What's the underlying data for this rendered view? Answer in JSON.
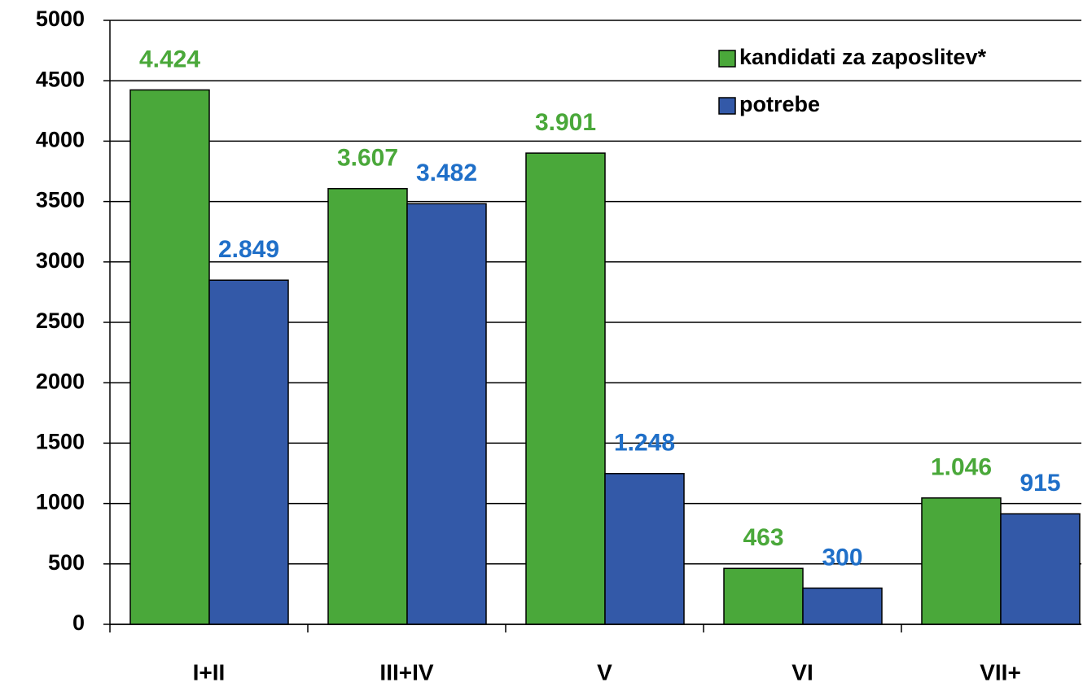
{
  "chart_data": {
    "type": "bar",
    "categories": [
      "I+II",
      "III+IV",
      "V",
      "VI",
      "VII+"
    ],
    "series": [
      {
        "name": "kandidati za zaposlitev*",
        "color": "#4aa83a",
        "label_color": "#4aa83a",
        "values": [
          4424,
          3607,
          3901,
          463,
          1046
        ],
        "value_labels": [
          "4.424",
          "3.607",
          "3.901",
          "463",
          "1.046"
        ]
      },
      {
        "name": "potrebe",
        "color": "#3359a8",
        "label_color": "#1f6fc8",
        "values": [
          2849,
          3482,
          1248,
          300,
          915
        ],
        "value_labels": [
          "2.849",
          "3.482",
          "1.248",
          "300",
          "915"
        ]
      }
    ],
    "ylim": [
      0,
      5000
    ],
    "yticks": [
      0,
      500,
      1000,
      1500,
      2000,
      2500,
      3000,
      3500,
      4000,
      4500,
      5000
    ],
    "grid": true,
    "legend": "upper right"
  }
}
